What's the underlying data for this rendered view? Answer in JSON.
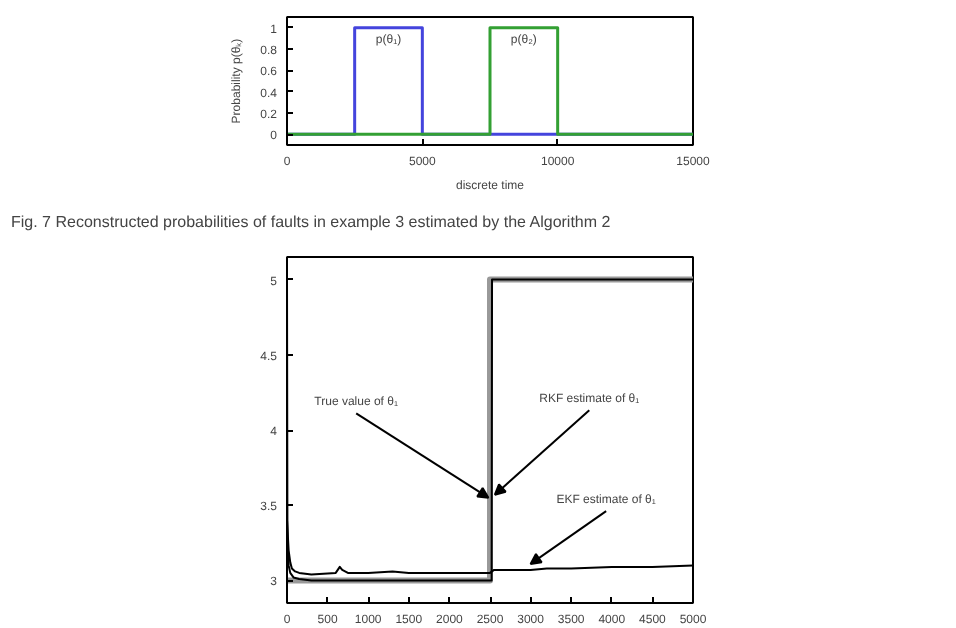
{
  "chart_data": [
    {
      "type": "line",
      "xlabel": "discrete time",
      "ylabel": "Probability p(θₖ)",
      "xlim": [
        0,
        15000
      ],
      "ylim": [
        -0.1,
        1.1
      ],
      "xticks": [
        0,
        5000,
        10000,
        15000
      ],
      "yticks": [
        0,
        0.2,
        0.4,
        0.6,
        0.8,
        1
      ],
      "series": [
        {
          "name": "p(θ₁)",
          "color": "#4444dd",
          "x": [
            0,
            2500,
            2500,
            5000,
            5000,
            15000
          ],
          "values": [
            0,
            0,
            1,
            1,
            0,
            0
          ]
        },
        {
          "name": "p(θ₂)",
          "color": "#33a033",
          "x": [
            0,
            7500,
            7500,
            10000,
            10000,
            15000
          ],
          "values": [
            0,
            0,
            1,
            1,
            0,
            0
          ]
        }
      ],
      "annotations": [
        "Fig. 7 Reconstructed probabilities of faults in example 3 estimated by the Algorithm 2"
      ]
    },
    {
      "type": "line",
      "xlim": [
        0,
        5000
      ],
      "ylim": [
        2.85,
        5.15
      ],
      "xticks": [
        0,
        500,
        1000,
        1500,
        2000,
        2500,
        3000,
        3500,
        4000,
        4500,
        5000
      ],
      "yticks": [
        3,
        3.5,
        4,
        4.5,
        5
      ],
      "series": [
        {
          "color": "#999999",
          "x": [
            0,
            2500,
            2500,
            5000
          ],
          "values": [
            3,
            3,
            5,
            5
          ]
        },
        {
          "color": "#000000",
          "x": [
            0,
            5,
            10,
            20,
            40,
            80,
            150,
            300,
            600,
            1000,
            1500,
            2000,
            2520,
            2525,
            5000
          ],
          "values": [
            5,
            3.4,
            3.2,
            3.1,
            3.05,
            3.02,
            3.01,
            3.0,
            3.0,
            3.0,
            3.0,
            3.0,
            3.0,
            5,
            5
          ]
        },
        {
          "color": "#000000",
          "x": [
            0,
            20,
            40,
            60,
            100,
            150,
            300,
            600,
            650,
            680,
            750,
            1000,
            1300,
            1500,
            2000,
            2500,
            2550,
            3000,
            3200,
            3500,
            4000,
            4500,
            5000
          ],
          "values": [
            3.4,
            3.2,
            3.12,
            3.08,
            3.06,
            3.05,
            3.04,
            3.05,
            3.09,
            3.07,
            3.05,
            3.05,
            3.06,
            3.05,
            3.05,
            3.05,
            3.07,
            3.07,
            3.08,
            3.08,
            3.09,
            3.09,
            3.1
          ]
        }
      ],
      "annotations": [
        {
          "text": "True value of θ₁",
          "x": 2480,
          "y": 3.55
        },
        {
          "text": "RKF estimate of θ₁",
          "x": 2560,
          "y": 3.57
        },
        {
          "text": "EKF estimate of θ₁",
          "x": 3000,
          "y": 3.11
        }
      ]
    }
  ]
}
